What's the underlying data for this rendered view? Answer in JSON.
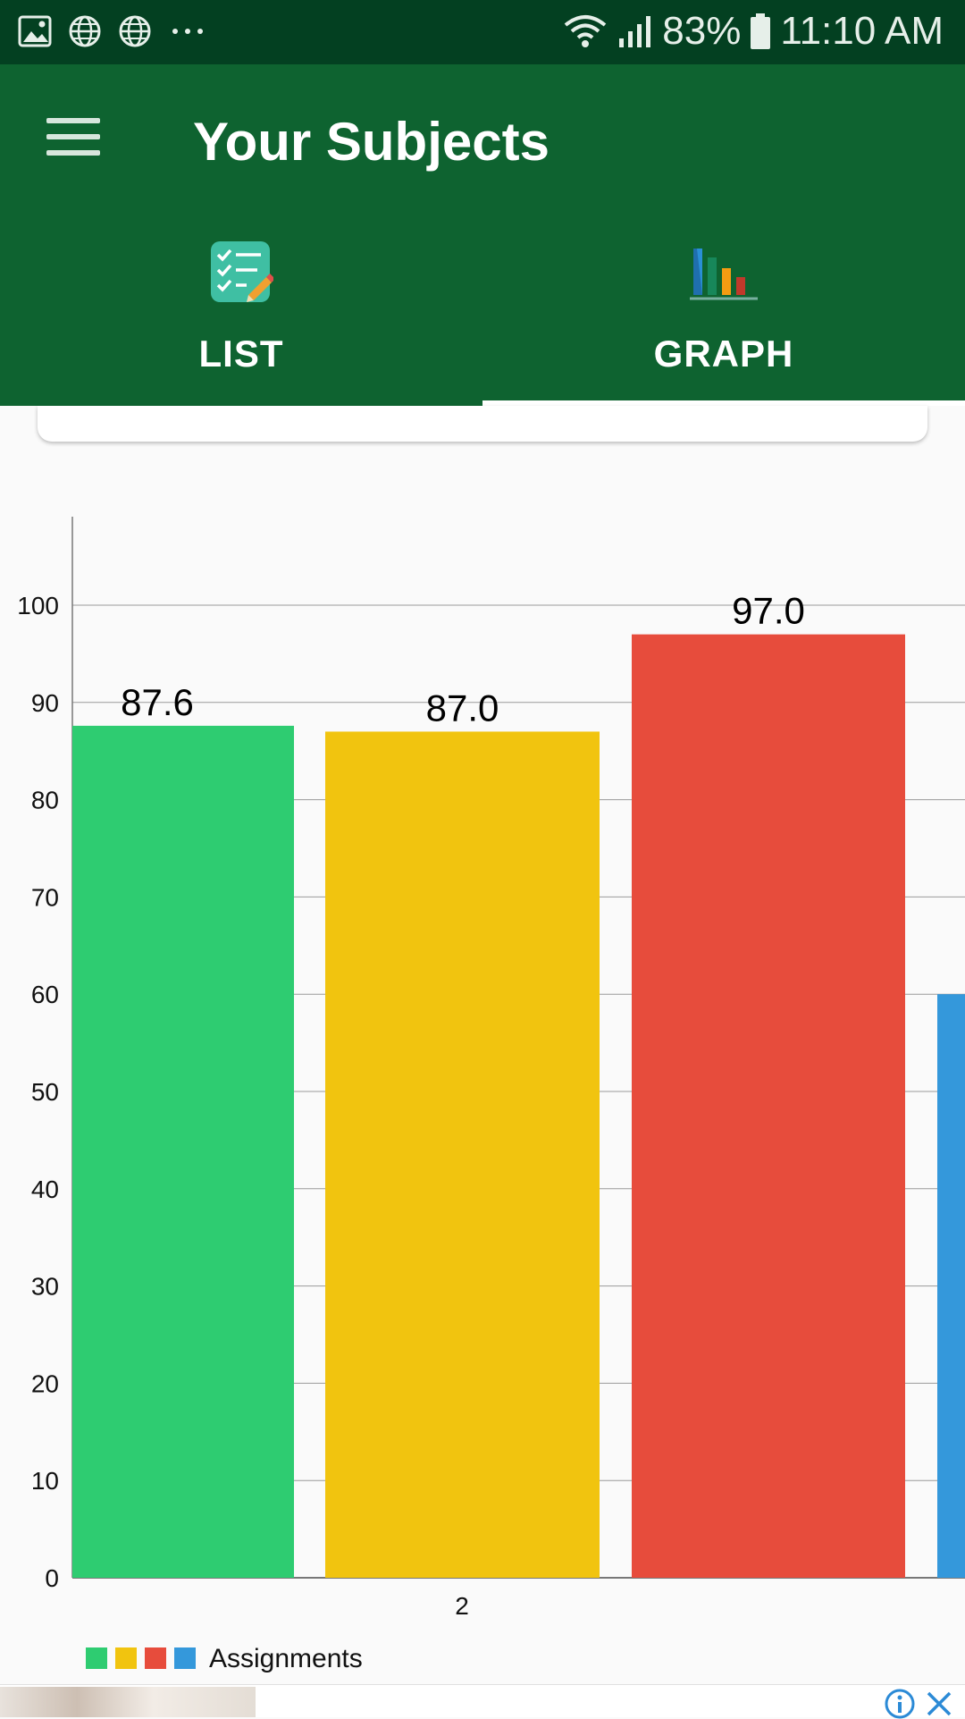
{
  "status_bar": {
    "left_icons": [
      "image-icon",
      "globe-icon",
      "globe-icon",
      "more-icon"
    ],
    "battery": "83%",
    "time": "11:10 AM"
  },
  "app_bar": {
    "title": "Your Subjects",
    "tabs": [
      {
        "label": "LIST",
        "icon": "checklist-icon",
        "selected": false
      },
      {
        "label": "GRAPH",
        "icon": "bar-chart-icon",
        "selected": true
      }
    ]
  },
  "colors": {
    "app_bar": "#0e6330",
    "status_bar": "#034021",
    "green": "#2ecc71",
    "yellow": "#f1c40f",
    "red": "#e74c3c",
    "blue": "#3498db"
  },
  "chart_data": {
    "type": "bar",
    "categories": [
      "2"
    ],
    "series": [
      {
        "values": [
          87.6
        ],
        "color": "#2ecc71"
      },
      {
        "values": [
          87.0
        ],
        "color": "#f1c40f"
      },
      {
        "values": [
          97.0
        ],
        "color": "#e74c3c"
      },
      {
        "values": [
          60.0
        ],
        "color": "#3498db"
      }
    ],
    "data_labels": [
      "87.6",
      "87.0",
      "97.0",
      ""
    ],
    "y_ticks": [
      "0",
      "10",
      "20",
      "30",
      "40",
      "50",
      "60",
      "70",
      "80",
      "90",
      "100"
    ],
    "ylim": [
      0,
      109
    ],
    "x_tick_label": "2",
    "legend_label": "Assignments",
    "legend_position": "bottom-left",
    "grid": true
  },
  "ad": {
    "info_icon": "info-icon",
    "close_icon": "close-icon"
  }
}
